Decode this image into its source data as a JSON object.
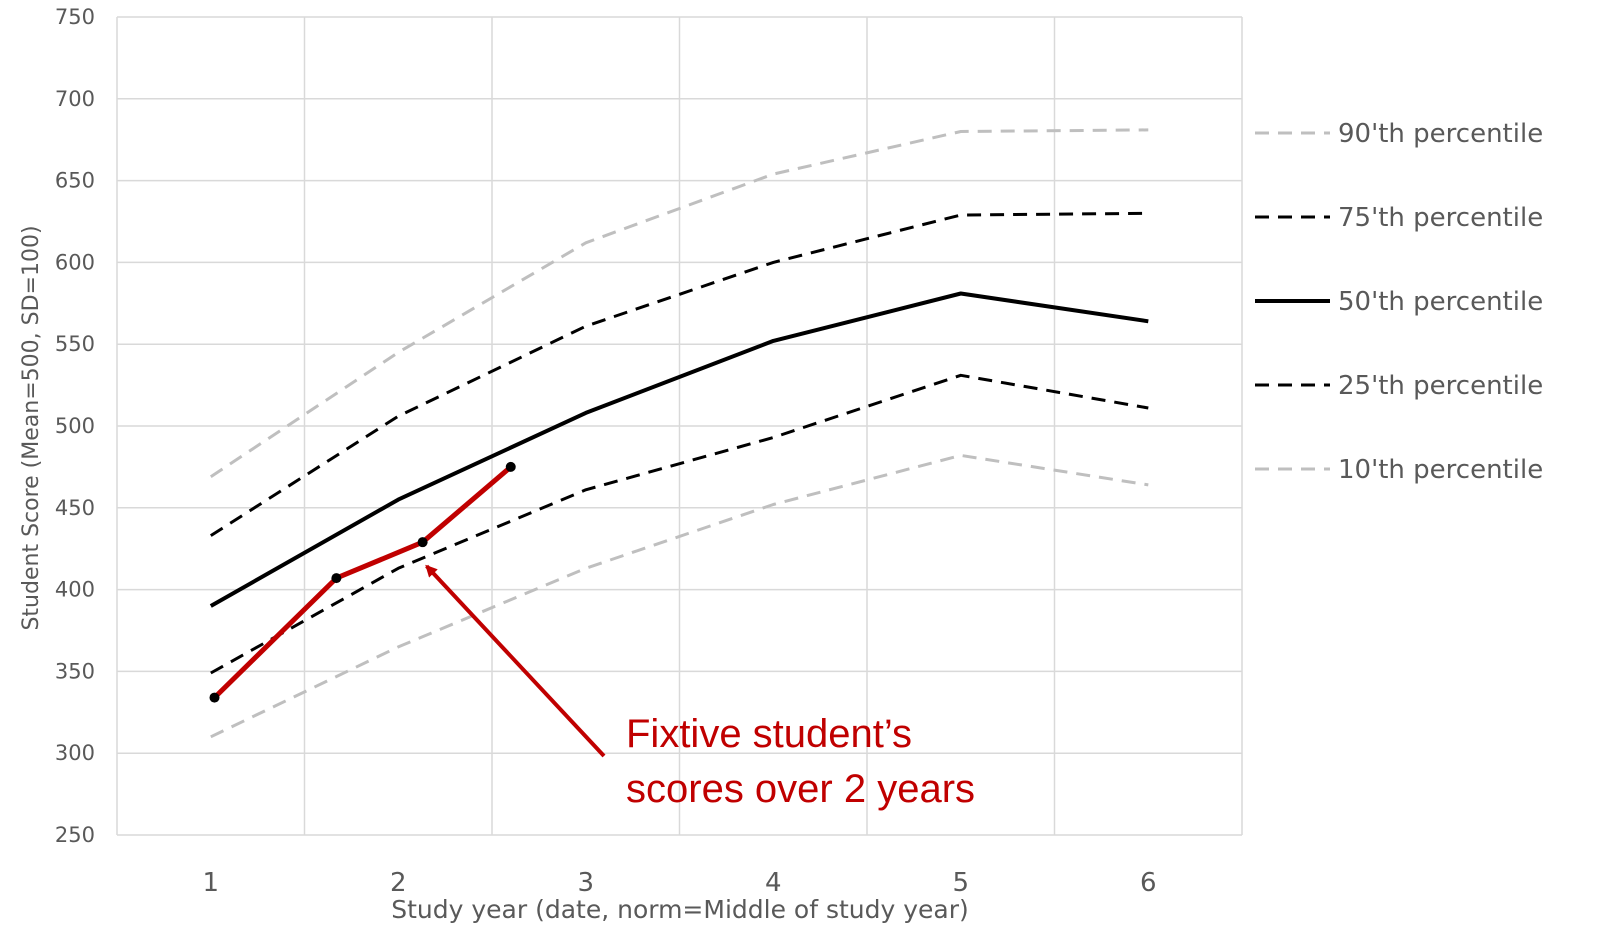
{
  "chart_data": {
    "type": "line",
    "xlabel": "Study year (date, norm=Middle of study year)",
    "ylabel": "Student Score (Mean=500, SD=100)",
    "xlim": [
      0.5,
      6.5
    ],
    "ylim": [
      250,
      750
    ],
    "yticks": [
      250,
      300,
      350,
      400,
      450,
      500,
      550,
      600,
      650,
      700,
      750
    ],
    "xticks": [
      1,
      2,
      3,
      4,
      5,
      6
    ],
    "grid": true,
    "legend_position": "right",
    "x": [
      1,
      2,
      3,
      4,
      5,
      6
    ],
    "series": [
      {
        "name": "90'th percentile",
        "values": [
          469,
          545,
          612,
          654,
          680,
          681
        ],
        "color": "#bfbfbf",
        "dash": "dashed",
        "key": "p90"
      },
      {
        "name": "75'th percentile",
        "values": [
          433,
          506,
          561,
          600,
          629,
          630
        ],
        "color": "#000000",
        "dash": "dashed",
        "key": "p75"
      },
      {
        "name": "50'th percentile",
        "values": [
          390,
          455,
          508,
          552,
          581,
          564
        ],
        "color": "#000000",
        "dash": "solid",
        "key": "p50"
      },
      {
        "name": "25'th percentile",
        "values": [
          349,
          413,
          461,
          493,
          531,
          511
        ],
        "color": "#000000",
        "dash": "dashed",
        "key": "p25"
      },
      {
        "name": "10'th percentile",
        "values": [
          310,
          365,
          413,
          452,
          482,
          464
        ],
        "color": "#bfbfbf",
        "dash": "dashed",
        "key": "p10"
      }
    ],
    "student": {
      "x": [
        1.02,
        1.67,
        2.13,
        2.6
      ],
      "values": [
        334,
        407,
        429,
        475
      ],
      "color": "#c00000"
    },
    "annotation": {
      "lines": [
        "Fixtive student’s",
        "scores over 2 years"
      ],
      "color": "#c00000"
    }
  }
}
